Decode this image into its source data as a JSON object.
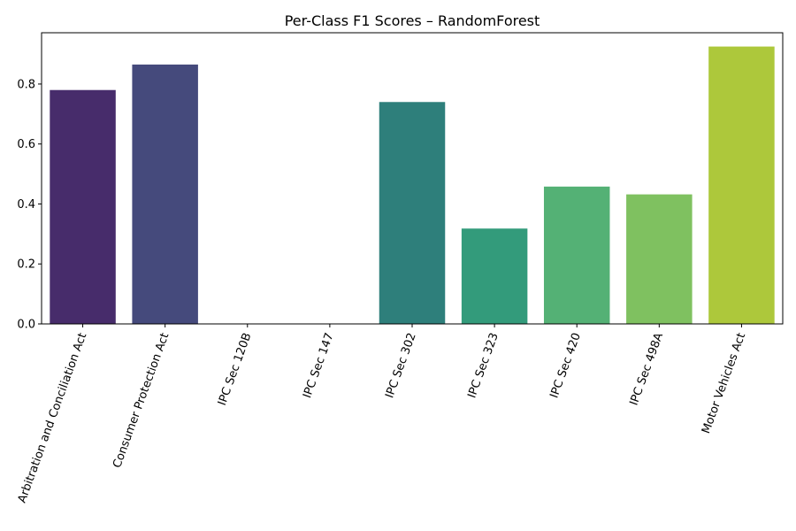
{
  "chart_data": {
    "type": "bar",
    "title": "Per-Class F1 Scores – RandomForest",
    "xlabel": "",
    "ylabel": "",
    "categories": [
      "Arbitration and Conciliation Act",
      "Consumer Protection Act",
      "IPC Sec 120B",
      "IPC Sec 147",
      "IPC Sec 302",
      "IPC Sec 323",
      "IPC Sec 420",
      "IPC Sec 498A",
      "Motor Vehicles Act"
    ],
    "values": [
      0.78,
      0.865,
      0.0,
      0.0,
      0.74,
      0.318,
      0.458,
      0.432,
      0.925
    ],
    "colors": [
      "#472c6b",
      "#454a7c",
      "#3c6a87",
      "#34808a",
      "#2e7f7b",
      "#339b7b",
      "#54b175",
      "#7fc160",
      "#adc83b"
    ],
    "yticks": [
      0.0,
      0.2,
      0.4,
      0.6,
      0.8
    ],
    "ytick_labels": [
      "0.0",
      "0.2",
      "0.4",
      "0.6",
      "0.8"
    ],
    "ylim": [
      0,
      0.971
    ],
    "grid": false,
    "legend": "none"
  }
}
